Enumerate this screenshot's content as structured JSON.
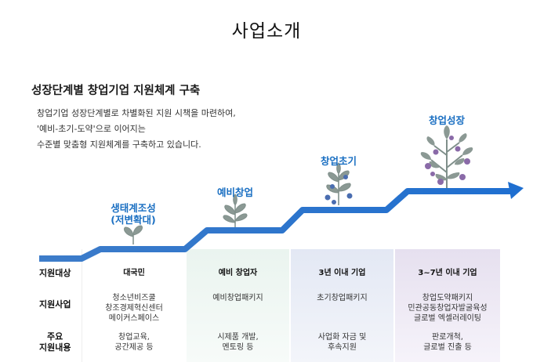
{
  "page_title": "사업소개",
  "section_title": "성장단계별 창업기업 지원체계 구축",
  "description": [
    "창업기업 성장단계별로 차별화된 지원 시책을 마련하여,",
    "'예비-초기-도약'으로 이어지는",
    "수준별 맞춤형 지원체계를 구축하고 있습니다."
  ],
  "stages": [
    {
      "lines": [
        "생태계조성",
        "(저변확대)"
      ]
    },
    {
      "lines": [
        "예비창업"
      ]
    },
    {
      "lines": [
        "창업초기"
      ]
    },
    {
      "lines": [
        "창업성장"
      ]
    }
  ],
  "row_labels": {
    "target": "지원대상",
    "program": "지원사업",
    "content": [
      "주요",
      "지원내용"
    ]
  },
  "columns": [
    {
      "target": "대국민",
      "program": [
        "청소년비즈쿨",
        "창조경제혁신센터",
        "메이커스페이스"
      ],
      "content": [
        "창업교육,",
        "공간제공 등"
      ]
    },
    {
      "target": "예비 창업자",
      "program": [
        "예비창업패키지"
      ],
      "content": [
        "시제품 개발,",
        "멘토링 등"
      ]
    },
    {
      "target": "3년 이내 기업",
      "program": [
        "초기창업패키지"
      ],
      "content": [
        "사업화 자금 및",
        "후속지원"
      ]
    },
    {
      "target": "3~7년 이내 기업",
      "program": [
        "창업도약패키지",
        "민관공동창업자발굴육성",
        "글로벌 엑셀러레이팅"
      ],
      "content": [
        "판로개척,",
        "글로벌 진출 등"
      ]
    }
  ],
  "colors": {
    "accent_blue": "#1a6fc2",
    "stage_text": "#1a6fc2",
    "plant_green": "#7f8f8a",
    "fruit_blue": "#4a6db0",
    "fruit_purple": "#8a6aa8"
  },
  "icons": [
    "sprout-icon",
    "plant-icon",
    "plant-with-blue-fruit-icon",
    "tree-with-purple-fruit-icon",
    "growth-arrow-icon"
  ]
}
